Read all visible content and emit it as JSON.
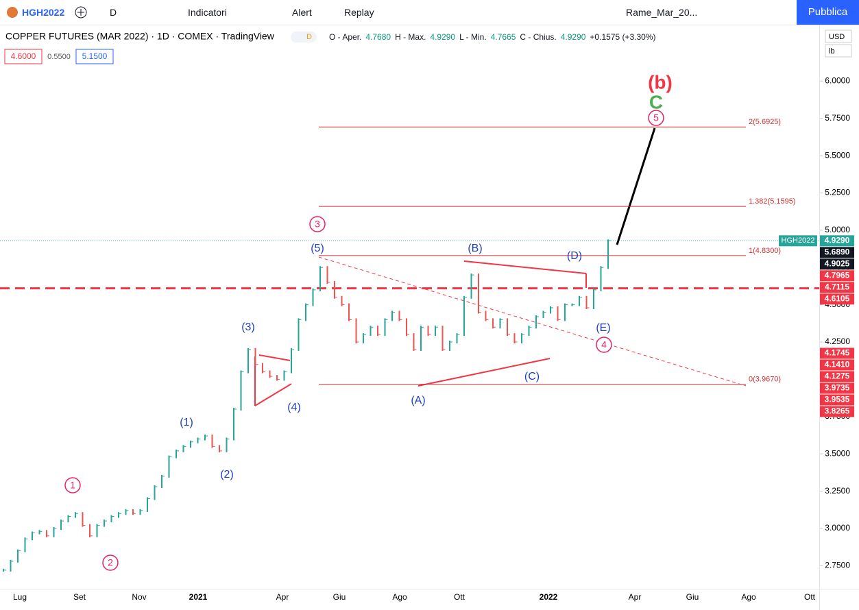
{
  "toolbar": {
    "symbol": "HGH2022",
    "interval": "D",
    "indicators": "Indicatori",
    "alert": "Alert",
    "replay": "Replay",
    "layout": "Rame_Mar_20...",
    "publish": "Pubblica"
  },
  "legend": {
    "title": "COPPER FUTURES (MAR 2022) · 1D · COMEX · TradingView",
    "badge": "D",
    "ohlc": [
      "O - Aper.",
      "4.7680",
      "H - Max.",
      "4.9290",
      "L - Min.",
      "4.7665",
      "C - Chius.",
      "4.9290",
      "+0.1575 (+3.30%)"
    ],
    "boxes": [
      "4.6000",
      "0.5500",
      "5.1500"
    ]
  },
  "currency": "USD",
  "unit": "lb",
  "chart_data": {
    "type": "ohlc",
    "values": [
      2.72,
      2.78,
      2.85,
      2.93,
      2.97,
      2.98,
      2.95,
      3.0,
      3.05,
      3.08,
      3.1,
      3.02,
      2.95,
      3.02,
      3.05,
      3.08,
      3.1,
      3.12,
      3.1,
      3.12,
      3.2,
      3.28,
      3.35,
      3.48,
      3.52,
      3.55,
      3.58,
      3.6,
      3.62,
      3.55,
      3.52,
      3.6,
      3.8,
      4.05,
      4.2,
      4.1,
      4.05,
      4.02,
      4.0,
      4.05,
      4.2,
      4.4,
      4.5,
      4.6,
      4.75,
      4.65,
      4.55,
      4.5,
      4.4,
      4.25,
      4.3,
      4.35,
      4.3,
      4.4,
      4.45,
      4.4,
      4.3,
      4.2,
      4.35,
      4.3,
      4.35,
      4.2,
      4.25,
      4.3,
      4.55,
      4.7,
      4.45,
      4.4,
      4.35,
      4.4,
      4.3,
      4.25,
      4.3,
      4.35,
      4.42,
      4.45,
      4.48,
      4.4,
      4.5,
      4.5,
      4.55,
      4.48,
      4.6,
      4.75,
      4.929
    ],
    "color_up": "#26a69a",
    "color_down": "#ef5350",
    "xticks": [
      "Lug",
      "Set",
      "Nov",
      "2021",
      "Apr",
      "Giu",
      "Ago",
      "Ott",
      "2022",
      "Apr",
      "Giu",
      "Ago",
      "Ott"
    ],
    "ylim": [
      2.6,
      6.36
    ],
    "yticks": [
      {
        "value": 2.75,
        "label": "2.7500"
      },
      {
        "value": 3,
        "label": "3.0000"
      },
      {
        "value": 3.25,
        "label": "3.2500"
      },
      {
        "value": 3.5,
        "label": "3.5000"
      },
      {
        "value": 3.75,
        "label": "3.7500"
      },
      {
        "value": 4,
        "label": "4.0000"
      },
      {
        "value": 4.25,
        "label": "4.2500"
      },
      {
        "value": 4.5,
        "label": "4.5000"
      },
      {
        "value": 4.75,
        "label": "4.7500"
      },
      {
        "value": 5,
        "label": "5.0000"
      },
      {
        "value": 5.25,
        "label": "5.2500"
      },
      {
        "value": 5.5,
        "label": "5.5000"
      },
      {
        "value": 5.75,
        "label": "5.7500"
      },
      {
        "value": 6,
        "label": "6.0000"
      }
    ],
    "fib_levels": [
      {
        "value": 5.6925,
        "label": "2(5.6925)"
      },
      {
        "value": 5.1595,
        "label": "1.382(5.1595)"
      },
      {
        "value": 4.83,
        "label": "1(4.8300)"
      },
      {
        "value": 3.967,
        "label": "0(3.9670)"
      }
    ],
    "last_price": {
      "name": "HGH2022",
      "value": 4.929,
      "label": "4.9290"
    },
    "price_badges": [
      {
        "value": 5.689,
        "label": "5.6890",
        "color": "#131722"
      },
      {
        "value": 4.9025,
        "label": "4.9025",
        "color": "#131722"
      },
      {
        "value": 4.7965,
        "label": "4.7965",
        "color": "#f23645"
      },
      {
        "value": 4.7115,
        "label": "4.7115",
        "color": "#f23645"
      },
      {
        "value": 4.6105,
        "label": "4.6105",
        "color": "#f23645"
      },
      {
        "value": 4.1745,
        "label": "4.1745",
        "color": "#f23645"
      },
      {
        "value": 4.141,
        "label": "4.1410",
        "color": "#f23645"
      },
      {
        "value": 4.1275,
        "label": "4.1275",
        "color": "#f23645"
      },
      {
        "value": 3.9735,
        "label": "3.9735",
        "color": "#f23645"
      },
      {
        "value": 3.9535,
        "label": "3.9535",
        "color": "#f23645"
      },
      {
        "value": 3.8265,
        "label": "3.8265",
        "color": "#f23645"
      }
    ],
    "wave_labels": [
      "(b)",
      "C",
      "5",
      "3",
      "(5)",
      "(B)",
      "(D)",
      "(E)",
      "4",
      "(3)",
      "(4)",
      "(A)",
      "(C)",
      "(1)",
      "(2)",
      "1",
      "2"
    ]
  }
}
